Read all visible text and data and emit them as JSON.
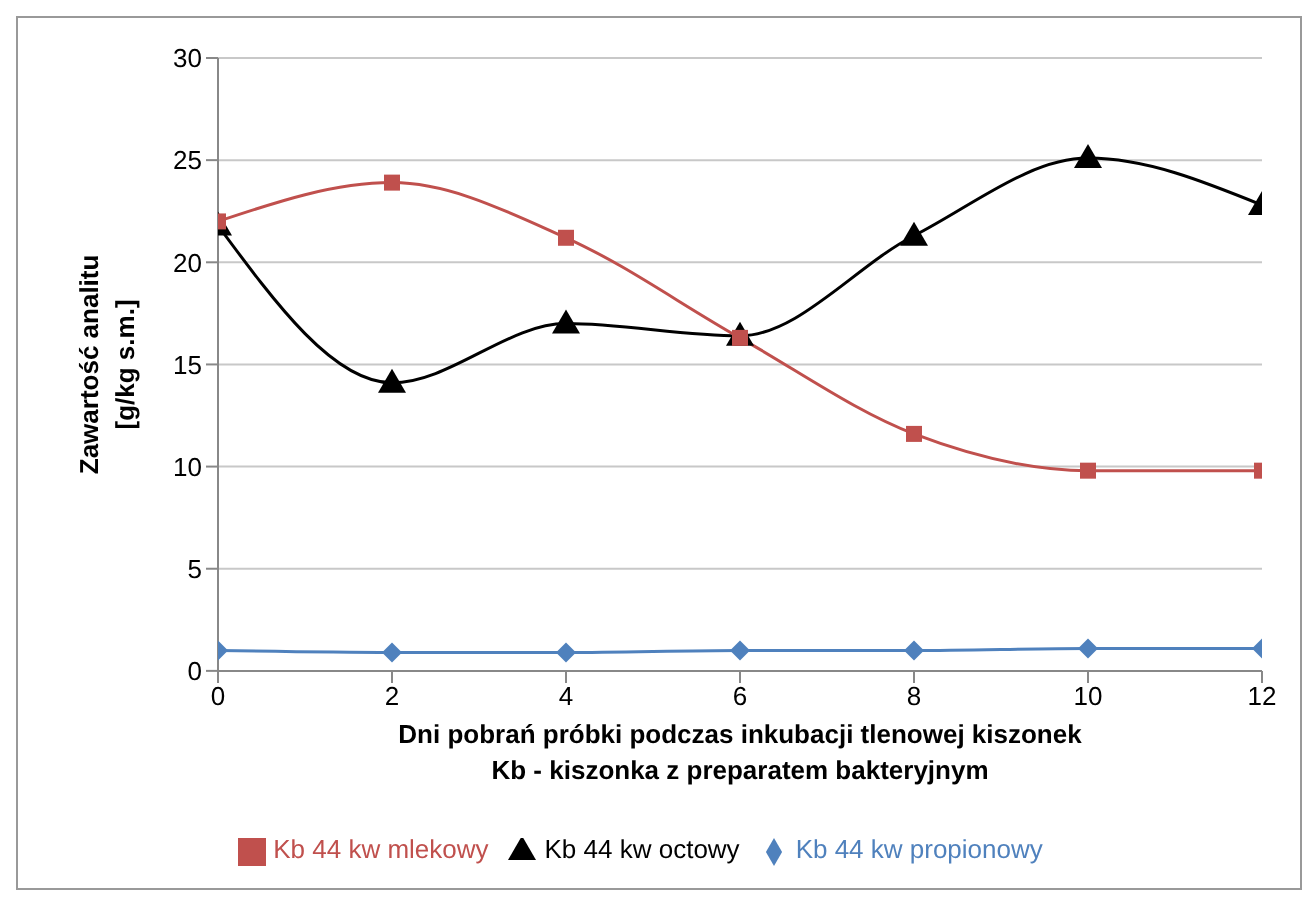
{
  "chart_data": {
    "type": "line",
    "xlabel": "Dni pobrań próbki podczas inkubacji tlenowej kiszonek\nKb - kiszonka z preparatem bakteryjnym",
    "ylabel": "Zawartość analitu\n[g/kg s.m.]",
    "x": [
      0,
      2,
      4,
      6,
      8,
      10,
      12
    ],
    "xlim": [
      0,
      12
    ],
    "xticks": [
      0,
      2,
      4,
      6,
      8,
      10,
      12
    ],
    "ylim": [
      0,
      30
    ],
    "yticks": [
      0,
      5,
      10,
      15,
      20,
      25,
      30
    ],
    "grid": "y",
    "legend": "bottom",
    "series": [
      {
        "name": "Kb 44 kw mlekowy",
        "color": "#c0504d",
        "marker": "square",
        "values": [
          22.0,
          23.9,
          21.2,
          16.3,
          11.6,
          9.8,
          9.8
        ]
      },
      {
        "name": "Kb 44 kw octowy",
        "color": "#000000",
        "marker": "triangle",
        "values": [
          21.8,
          14.1,
          17.0,
          16.4,
          21.3,
          25.1,
          22.8
        ]
      },
      {
        "name": "Kb 44 kw propionowy",
        "color": "#4f81bd",
        "marker": "diamond",
        "values": [
          1.0,
          0.9,
          0.9,
          1.0,
          1.0,
          1.1,
          1.1
        ]
      }
    ]
  }
}
